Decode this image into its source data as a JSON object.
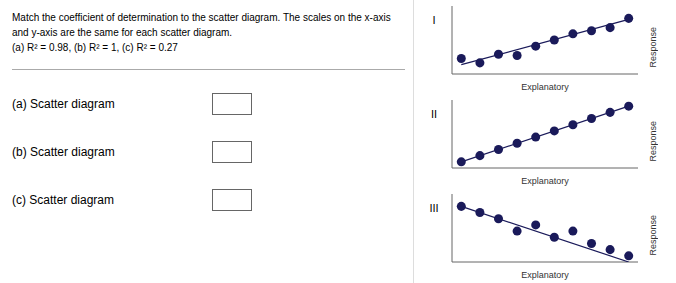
{
  "title": [
    "Match the coefficient of determination to the scatter diagram. The scales on the x-axis",
    "and y-axis are the same for each scatter diagram.",
    "(a) R² = 0.98,  (b) R² = 1,  (c) R² = 0.27"
  ],
  "annotations": [
    "(a) Scatter diagram",
    "(b) Scatter diagram",
    "(c) Scatter diagram"
  ],
  "chart_data": [
    {
      "type": "scatter",
      "title": "I",
      "x_label": "Explanatory",
      "y_label": "Response",
      "xlim": [
        0.5,
        10.5
      ],
      "ylim": [
        0,
        11
      ],
      "tick_labels": false,
      "grid": false,
      "color": "#1a1a5a",
      "marker": "circle",
      "x": [
        1,
        2,
        3,
        4,
        5,
        6,
        7,
        8,
        9,
        10
      ],
      "values": [
        2.5,
        1.8,
        3.2,
        3.0,
        4.5,
        5.5,
        6.5,
        7.0,
        7.5,
        9.0
      ],
      "fit_line": {
        "x": [
          1,
          10
        ],
        "values": [
          1.507273,
          8.832727
        ],
        "color": "#1a1a5a"
      }
    },
    {
      "type": "scatter",
      "title": "II",
      "x_label": "Explanatory",
      "y_label": "Response",
      "xlim": [
        0.5,
        10.5
      ],
      "ylim": [
        0,
        11
      ],
      "tick_labels": false,
      "grid": false,
      "color": "#1a1a5a",
      "marker": "circle",
      "x": [
        1,
        2,
        3,
        4,
        5,
        6,
        7,
        8,
        9,
        10
      ],
      "values": [
        1,
        2,
        3,
        4,
        5,
        6,
        7,
        8,
        9,
        10
      ],
      "fit_line": {
        "x": [
          1,
          10
        ],
        "values": [
          1,
          10
        ],
        "color": "#1a1a5a"
      }
    },
    {
      "type": "scatter",
      "title": "III",
      "x_label": "Explanatory",
      "y_label": "Response",
      "xlim": [
        0.5,
        10.5
      ],
      "ylim": [
        0,
        11
      ],
      "tick_labels": false,
      "grid": false,
      "color": "#1a1a5a",
      "marker": "circle",
      "x": [
        1,
        2,
        3,
        4,
        5,
        6,
        7,
        8,
        9,
        10
      ],
      "values": [
        9,
        8,
        7,
        5,
        6,
        4,
        5,
        3,
        2,
        1
      ],
      "fit_line": {
        "x": [
          1,
          10
        ],
        "values": [
          9,
          0
        ],
        "color": "#1a1a5a"
      }
    }
  ]
}
